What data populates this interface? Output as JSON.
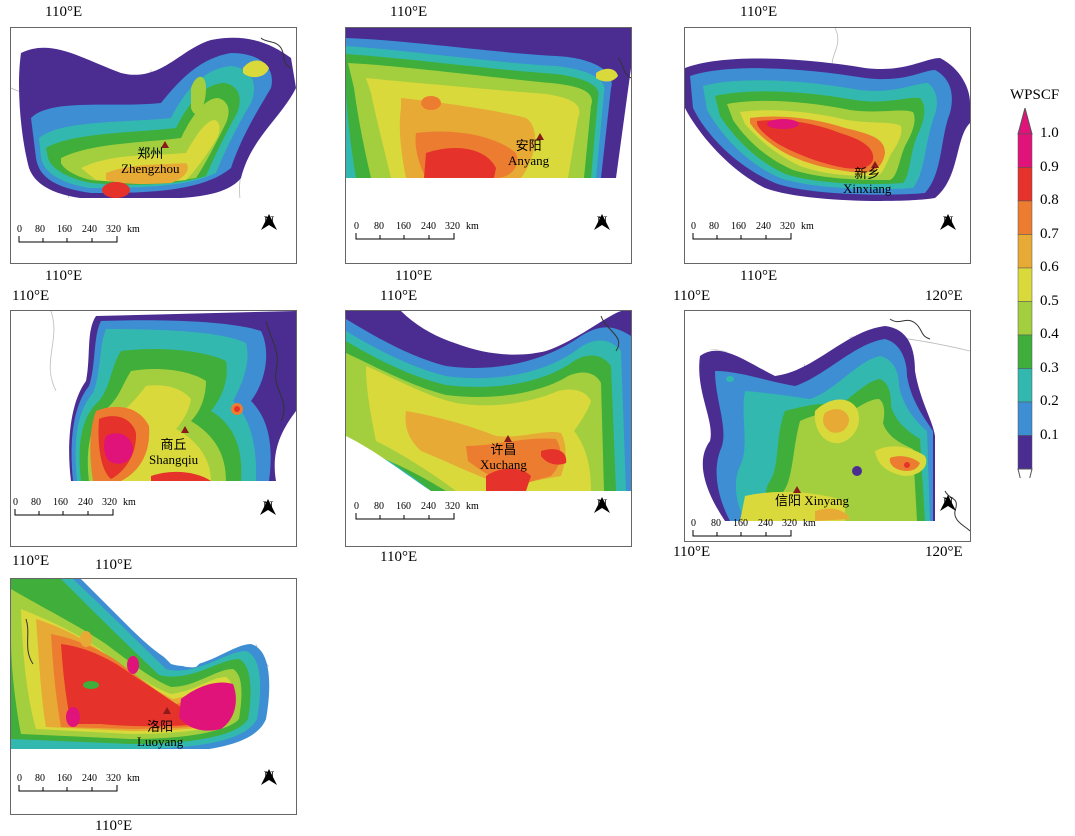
{
  "legend": {
    "title": "WPSCF",
    "values": [
      "1.0",
      "0.9",
      "0.8",
      "0.7",
      "0.6",
      "0.5",
      "0.4",
      "0.3",
      "0.2",
      "0.1"
    ],
    "colors": [
      "#e0137a",
      "#e5322b",
      "#ec7d30",
      "#e7aa35",
      "#d9d93c",
      "#a3cf3e",
      "#3fae3b",
      "#33b8b0",
      "#3d8ed2",
      "#4b2d92"
    ]
  },
  "scale": {
    "ticks": [
      "0",
      "80",
      "160",
      "240",
      "320"
    ],
    "unit": "km"
  },
  "north_label": "N",
  "panels": [
    {
      "id": "zhengzhou",
      "cn": "郑州",
      "en": "Zhengzhou",
      "coords_top": [
        "110°E"
      ],
      "coords_bottom": [
        "110°E"
      ]
    },
    {
      "id": "anyang",
      "cn": "安阳",
      "en": "Anyang",
      "coords_top": [
        "110°E"
      ],
      "coords_bottom": [
        "110°E"
      ]
    },
    {
      "id": "xinxiang",
      "cn": "新乡",
      "en": "Xinxiang",
      "coords_top": [
        "110°E"
      ],
      "coords_bottom": [
        "110°E"
      ]
    },
    {
      "id": "shangqiu",
      "cn": "商丘",
      "en": "Shangqiu",
      "coords_top": [
        "110°E"
      ],
      "coords_bottom": []
    },
    {
      "id": "xuchang",
      "cn": "许昌",
      "en": "Xuchang",
      "coords_top": [
        "110°E"
      ],
      "coords_bottom": [
        "110°E"
      ]
    },
    {
      "id": "xinyang",
      "cn": "信阳",
      "en": "Xinyang",
      "coords_top": [
        "110°E",
        "120°E"
      ],
      "coords_bottom": [
        "110°E",
        "120°E"
      ]
    },
    {
      "id": "luoyang",
      "cn": "洛阳",
      "en": "Luoyang",
      "coords_top": [
        "110°E",
        "110°E"
      ],
      "coords_bottom": [
        "110°E"
      ]
    }
  ]
}
